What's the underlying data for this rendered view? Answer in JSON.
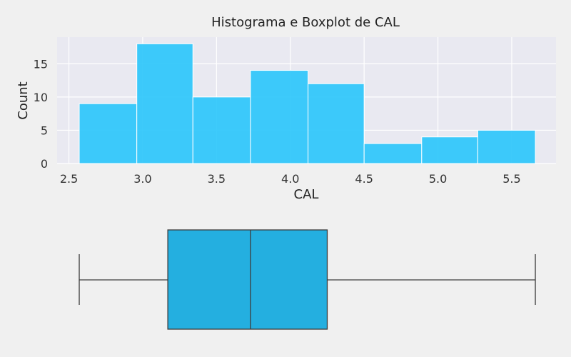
{
  "chart_data": [
    {
      "type": "histogram",
      "title": "Histograma e Boxplot de CAL",
      "xlabel": "CAL",
      "ylabel": "Count",
      "xlim": [
        2.42,
        5.8
      ],
      "ylim": [
        0,
        19
      ],
      "x_ticks": [
        "2.5",
        "3.0",
        "3.5",
        "4.0",
        "4.5",
        "5.0",
        "5.5"
      ],
      "y_ticks": [
        "0",
        "5",
        "10",
        "15"
      ],
      "grid": true,
      "bins": [
        {
          "x0": 2.57,
          "x1": 2.96,
          "count": 9
        },
        {
          "x0": 2.96,
          "x1": 3.34,
          "count": 18
        },
        {
          "x0": 3.34,
          "x1": 3.73,
          "count": 10
        },
        {
          "x0": 3.73,
          "x1": 4.12,
          "count": 14
        },
        {
          "x0": 4.12,
          "x1": 4.5,
          "count": 12
        },
        {
          "x0": 4.5,
          "x1": 4.89,
          "count": 3
        },
        {
          "x0": 4.89,
          "x1": 5.27,
          "count": 4
        },
        {
          "x0": 5.27,
          "x1": 5.66,
          "count": 5
        }
      ],
      "color": "#29c5fb"
    },
    {
      "type": "boxplot",
      "whisker_low": 2.57,
      "q1": 3.17,
      "median": 3.73,
      "q3": 4.25,
      "whisker_high": 5.66,
      "color": "#24afe0"
    }
  ]
}
